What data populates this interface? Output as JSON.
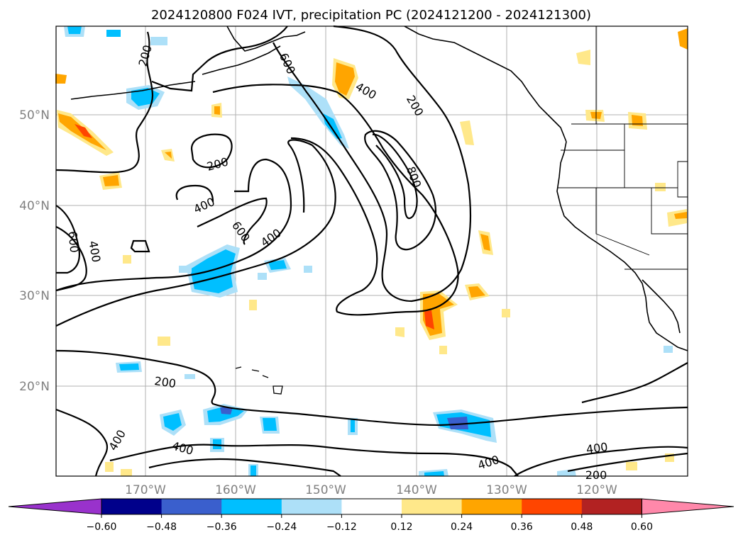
{
  "title": "2024120800 F024 IVT, precipitation PC (2024121200 - 2024121300)",
  "lat_labels": [
    "50°N",
    "40°N",
    "30°N",
    "20°N"
  ],
  "lon_labels": [
    "170°W",
    "160°W",
    "150°W",
    "140°W",
    "130°W",
    "120°W"
  ],
  "colorbar": {
    "ticks": [
      "−0.60",
      "−0.48",
      "−0.36",
      "−0.24",
      "−0.12",
      "0.12",
      "0.24",
      "0.36",
      "0.48",
      "0.60"
    ],
    "colors": [
      "#9932CC",
      "#00008B",
      "#3A5FCD",
      "#00BFFF",
      "#ADE0F8",
      "#FFFFFF",
      "#FFE88A",
      "#FFA500",
      "#FF4500",
      "#B22222",
      "#FF88AA"
    ]
  },
  "contour_labels": [
    "200",
    "200",
    "200",
    "200",
    "200",
    "400",
    "400",
    "400",
    "400",
    "400",
    "400",
    "400",
    "400",
    "400",
    "400",
    "600",
    "600",
    "600",
    "800"
  ],
  "colors": {
    "contour": "#000000",
    "grid": "#b0b0b0",
    "coast": "#000000"
  }
}
